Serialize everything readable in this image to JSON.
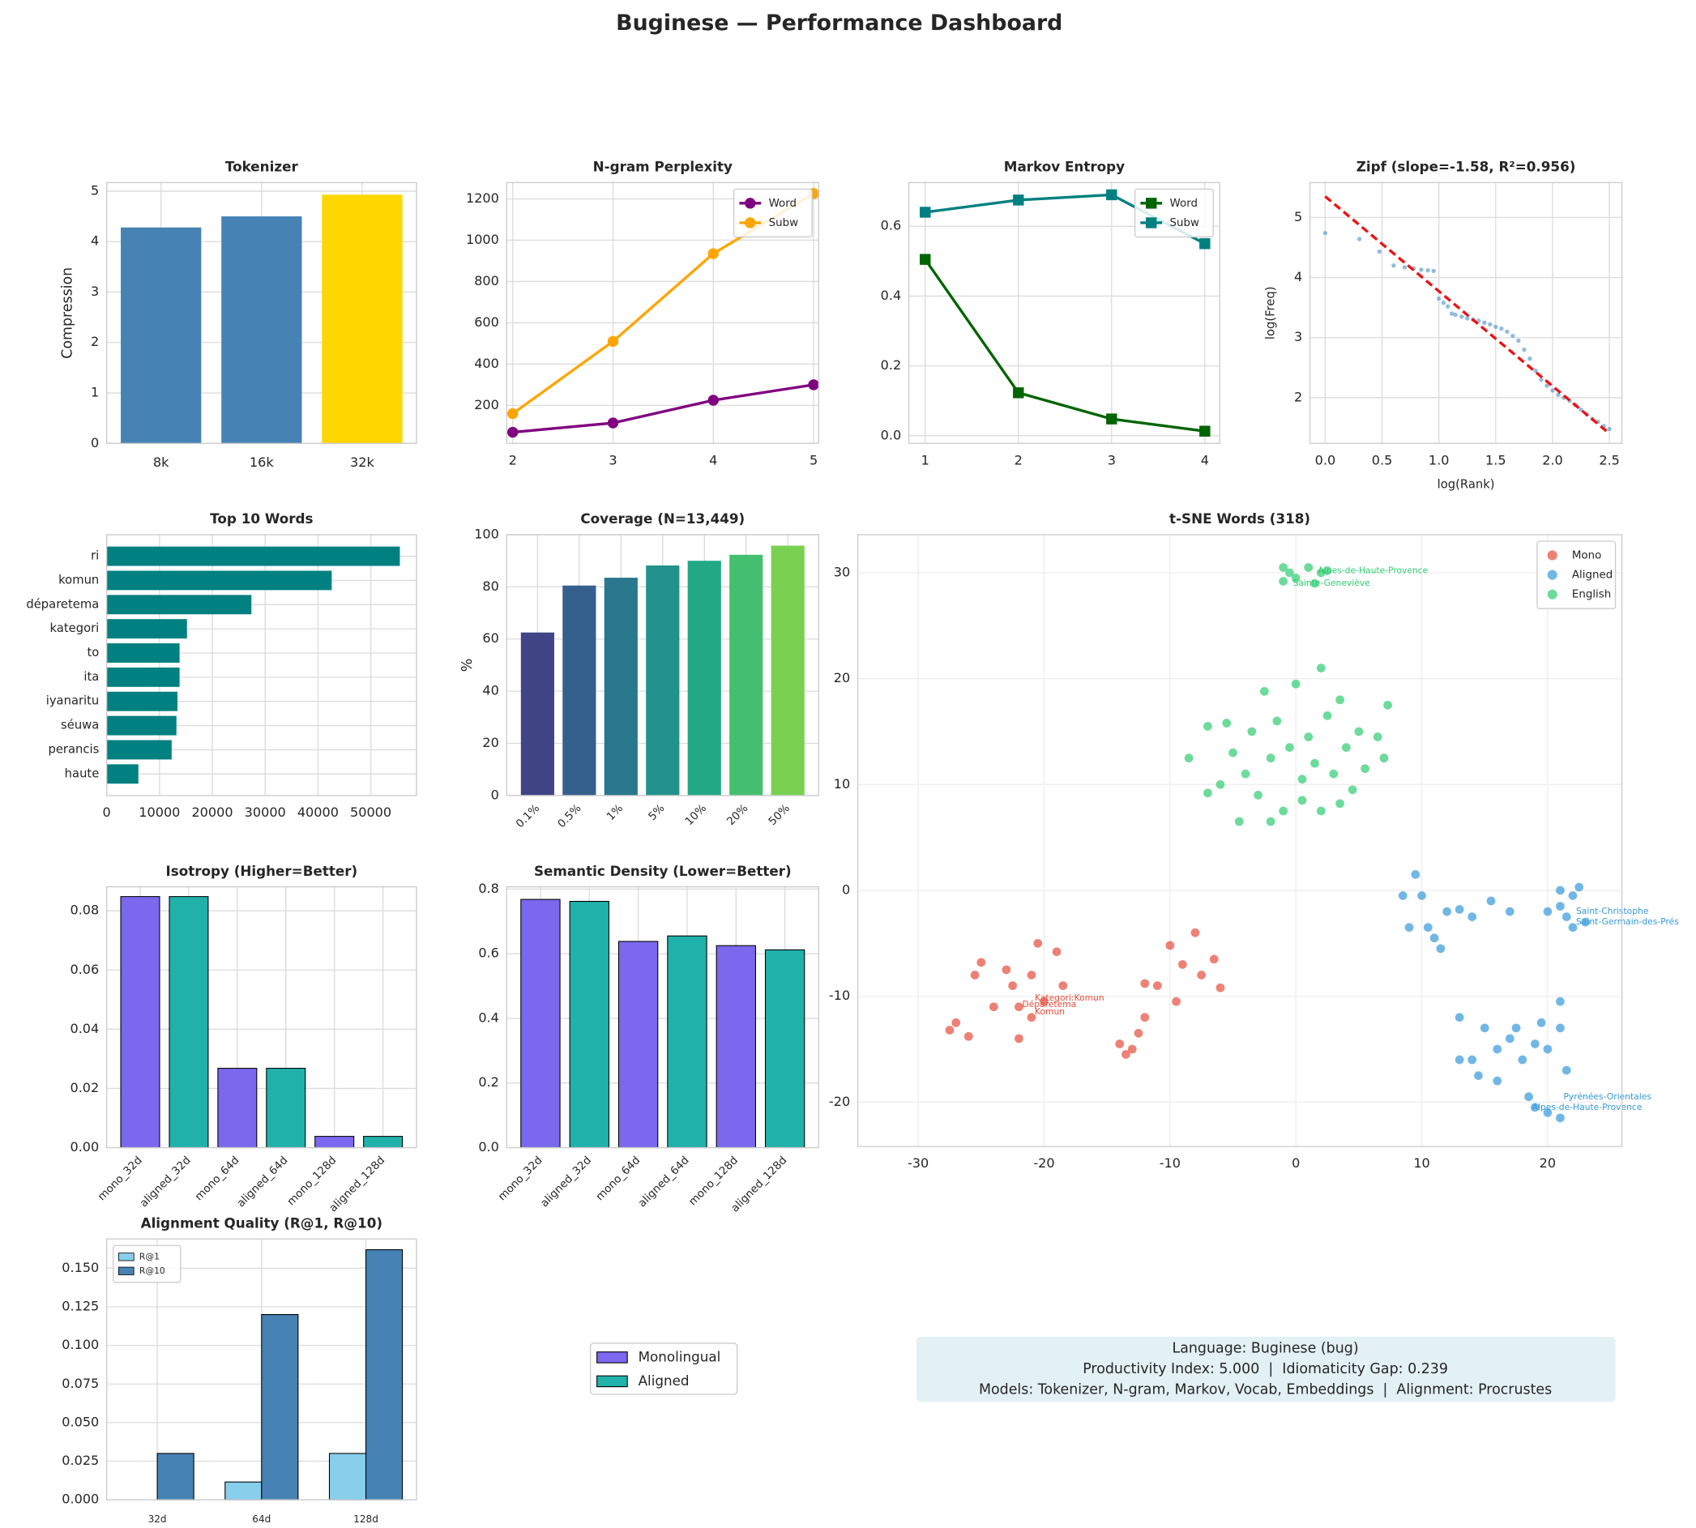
{
  "title": "Buginese — Performance Dashboard",
  "chart_data": [
    {
      "type": "bar",
      "title": "Tokenizer",
      "ylabel": "Compression",
      "categories": [
        "8k",
        "16k",
        "32k"
      ],
      "values": [
        4.28,
        4.5,
        4.93
      ],
      "colors": [
        "#4682b4",
        "#4682b4",
        "#ffd700"
      ],
      "ylim": [
        0,
        5.17
      ],
      "yticks": [
        0,
        1,
        2,
        3,
        4,
        5
      ],
      "grid": true
    },
    {
      "type": "line",
      "title": "N-gram Perplexity",
      "xlim": [
        1.94,
        5.05
      ],
      "xticks": [
        2,
        3,
        4,
        5
      ],
      "ylim": [
        16,
        1279
      ],
      "yticks": [
        200,
        400,
        600,
        800,
        1000,
        1200
      ],
      "grid": true,
      "legend": "upper right",
      "series": [
        {
          "name": "Word",
          "color": "#800080",
          "marker": "o",
          "x": [
            2,
            3,
            4,
            5
          ],
          "values": [
            70,
            115,
            225,
            300
          ]
        },
        {
          "name": "Subw",
          "color": "#ffa500",
          "marker": "o",
          "x": [
            2,
            3,
            4,
            5
          ],
          "values": [
            160,
            510,
            935,
            1226
          ]
        }
      ]
    },
    {
      "type": "line",
      "title": "Markov Entropy",
      "xlim": [
        0.825,
        4.16
      ],
      "xticks": [
        1,
        2,
        3,
        4
      ],
      "ylim": [
        -0.022,
        0.725
      ],
      "yticks": [
        {
          "value": 0,
          "label": "0.0"
        },
        0.2,
        0.4,
        0.6
      ],
      "grid": true,
      "legend": "upper right",
      "series": [
        {
          "name": "Word",
          "color": "#006400",
          "marker": "s",
          "x": [
            1,
            2,
            3,
            4
          ],
          "values": [
            0.505,
            0.123,
            0.048,
            0.013
          ]
        },
        {
          "name": "Subw",
          "color": "#008080",
          "marker": "s",
          "x": [
            1,
            2,
            3,
            4
          ],
          "values": [
            0.64,
            0.675,
            0.69,
            0.55
          ]
        }
      ]
    },
    {
      "type": "scatter",
      "title": "Zipf (slope=-1.58, R²=0.956)",
      "xlabel": "log(Rank)",
      "ylabel": "log(Freq)",
      "xlim": [
        -0.134,
        2.61
      ],
      "xticks": [
        {
          "value": 0,
          "label": "0.0"
        },
        0.5,
        {
          "value": 1,
          "label": "1.0"
        },
        1.5,
        {
          "value": 2,
          "label": "2.0"
        },
        2.5
      ],
      "ylim": [
        1.24,
        5.58
      ],
      "yticks": [
        2,
        3,
        4,
        5
      ],
      "grid": true,
      "color": "#4a90c8",
      "x": [
        0,
        0.301,
        0.477,
        0.602,
        0.699,
        0.778,
        0.845,
        0.903,
        0.954,
        1.0,
        1.041,
        1.079,
        1.114,
        1.146,
        1.2,
        1.25,
        1.3,
        1.35,
        1.4,
        1.45,
        1.5,
        1.55,
        1.6,
        1.65,
        1.7,
        1.75,
        1.8,
        1.85,
        1.9,
        1.95,
        2.0,
        2.05,
        2.1,
        2.15,
        2.2,
        2.25,
        2.3,
        2.35,
        2.4,
        2.45,
        2.5
      ],
      "y": [
        4.74,
        4.64,
        4.43,
        4.2,
        4.17,
        4.15,
        4.13,
        4.12,
        4.11,
        3.65,
        3.58,
        3.52,
        3.4,
        3.38,
        3.35,
        3.32,
        3.3,
        3.28,
        3.25,
        3.22,
        3.18,
        3.15,
        3.1,
        3.03,
        2.95,
        2.8,
        2.65,
        2.45,
        2.3,
        2.2,
        2.12,
        2.05,
        2.0,
        1.95,
        1.88,
        1.8,
        1.72,
        1.65,
        1.6,
        1.53,
        1.48
      ],
      "fit": {
        "color": "#ee1111",
        "x": [
          0,
          2.49
        ],
        "y": [
          5.35,
          1.42
        ]
      }
    },
    {
      "type": "barh",
      "title": "Top 10 Words",
      "categories": [
        "ri",
        "komun",
        "déparetema",
        "kategori",
        "to",
        "ita",
        "iyanaritu",
        "séuwa",
        "perancis",
        "haute"
      ],
      "values": [
        55500,
        42600,
        27400,
        15200,
        13800,
        13800,
        13400,
        13200,
        12300,
        6000
      ],
      "color": "#008080",
      "xlim": [
        0,
        58650
      ],
      "xticks": [
        0,
        10000,
        20000,
        30000,
        40000,
        50000
      ],
      "grid": true
    },
    {
      "type": "bar",
      "title": "Coverage (N=13,449)",
      "ylabel": "%",
      "categories": [
        "0.1%",
        "0.5%",
        "1%",
        "5%",
        "10%",
        "20%",
        "50%"
      ],
      "values": [
        62.5,
        80.5,
        83.5,
        88.2,
        90,
        92.3,
        95.8
      ],
      "colors": [
        "#414487",
        "#355f8d",
        "#2a788e",
        "#21918c",
        "#22a884",
        "#44bf70",
        "#7ad151"
      ],
      "ylim": [
        0,
        100
      ],
      "yticks": [
        0,
        20,
        40,
        60,
        80,
        100
      ],
      "grid": true,
      "xtick_rotation": 45
    },
    {
      "type": "scatter",
      "title": "t-SNE Words (318)",
      "xlim": [
        -34.8,
        25.9
      ],
      "xticks": [
        -30,
        -20,
        -10,
        0,
        10,
        20
      ],
      "ylim": [
        -24.2,
        33.6
      ],
      "yticks": [
        -20,
        -10,
        0,
        10,
        20,
        30
      ],
      "grid": true,
      "legend": "upper right",
      "series": [
        {
          "name": "Mono",
          "color": "#e74c3c",
          "x": [
            -27.5,
            -27,
            -26,
            -25,
            -25.5,
            -24,
            -23,
            -22.5,
            -22,
            -21,
            -21,
            -20,
            -19,
            -18.5,
            -20.5,
            -22,
            -14,
            -13,
            -12.5,
            -12,
            -11,
            -10,
            -9,
            -8,
            -7.5,
            -6.5,
            -6,
            -9.5,
            -13.5,
            -12
          ],
          "y": [
            -13.2,
            -12.5,
            -13.8,
            -6.8,
            -8,
            -11,
            -7.5,
            -9,
            -11,
            -12,
            -8,
            -10.5,
            -5.8,
            -9,
            -5,
            -14,
            -14.5,
            -15,
            -13.5,
            -12,
            -9,
            -5.2,
            -7,
            -4,
            -8,
            -6.5,
            -9.2,
            -10.5,
            -15.5,
            -8.8
          ]
        },
        {
          "name": "Aligned",
          "color": "#3498db",
          "x": [
            9.5,
            8.5,
            10,
            9,
            10.5,
            11,
            11.5,
            12,
            13,
            14,
            15.5,
            17,
            20,
            21,
            22,
            22.5,
            21.5,
            23,
            22,
            21,
            13,
            14,
            14.5,
            15,
            16,
            17,
            17.5,
            18,
            19,
            19.5,
            20,
            21,
            21.5,
            21,
            20,
            21,
            19,
            18.5,
            16,
            13
          ],
          "y": [
            1.5,
            -0.5,
            -0.5,
            -3.5,
            -3.5,
            -4.5,
            -5.5,
            -2,
            -1.8,
            -2.5,
            -1,
            -2,
            -2,
            0,
            -0.5,
            0.3,
            -2.5,
            -3,
            -3.5,
            -1.5,
            -12,
            -16,
            -17.5,
            -13,
            -15,
            -14,
            -13,
            -16,
            -14.5,
            -12.5,
            -15,
            -13,
            -17,
            -10.5,
            -21,
            -21.5,
            -20.5,
            -19.5,
            -18,
            -16
          ]
        },
        {
          "name": "English",
          "color": "#2ecc71",
          "x": [
            -0.5,
            0,
            1,
            2,
            1.5,
            -1,
            2.5,
            -1,
            -8.5,
            -7,
            -6,
            -5,
            -4.5,
            -4,
            -3.5,
            -3,
            -2.5,
            -2,
            -1.5,
            -1,
            -0.5,
            0,
            0.5,
            1,
            1.5,
            2,
            2.5,
            3,
            3.5,
            4,
            4.5,
            5,
            5.5,
            6.5,
            7,
            7.3,
            2,
            -5.5,
            -2,
            0.5,
            -7,
            3.5
          ],
          "y": [
            30,
            29.5,
            30.5,
            30,
            29,
            29.2,
            30.2,
            30.5,
            12.5,
            15.5,
            10,
            13,
            6.5,
            11,
            15,
            9,
            18.8,
            12.5,
            16,
            7.5,
            13.5,
            19.5,
            10.5,
            14.5,
            12,
            7.5,
            16.5,
            11,
            18,
            13.5,
            9.5,
            15,
            11.5,
            14.5,
            12.5,
            17.5,
            21,
            15.8,
            6.5,
            8.5,
            9.2,
            8.2
          ]
        }
      ],
      "annotations": [
        {
          "text": "Kategori:Komun",
          "x": -21,
          "y": -10.2,
          "color": "#e74c3c"
        },
        {
          "text": "Déparetema",
          "x": -22,
          "y": -10.8,
          "color": "#e74c3c"
        },
        {
          "text": "Komun",
          "x": -21,
          "y": -11.5,
          "color": "#e74c3c"
        },
        {
          "text": "Saint-Christophe",
          "x": 22,
          "y": -2,
          "color": "#3498db"
        },
        {
          "text": "Saint-Germain-des-Prés",
          "x": 22,
          "y": -3,
          "color": "#3498db"
        },
        {
          "text": "Pyrénées-Orientales",
          "x": 21,
          "y": -19.5,
          "color": "#3498db"
        },
        {
          "text": "Alpes-de-Haute-Provence",
          "x": 18.5,
          "y": -20.5,
          "color": "#3498db"
        },
        {
          "text": "Alpes-de-Haute-Provence",
          "x": 1.5,
          "y": 30.2,
          "color": "#2ecc71"
        },
        {
          "text": "Sainte-Geneviève",
          "x": -0.5,
          "y": 29,
          "color": "#2ecc71"
        }
      ]
    },
    {
      "type": "bar",
      "title": "Isotropy (Higher=Better)",
      "categories": [
        "mono_32d",
        "aligned_32d",
        "mono_64d",
        "aligned_64d",
        "mono_128d",
        "aligned_128d"
      ],
      "values": [
        0.0848,
        0.0848,
        0.0268,
        0.0268,
        0.0038,
        0.0038
      ],
      "colors": [
        "#7b68ee",
        "#20b2aa",
        "#7b68ee",
        "#20b2aa",
        "#7b68ee",
        "#20b2aa"
      ],
      "edgecolor": "#000000",
      "ylim": [
        0,
        0.0881
      ],
      "yticks": [
        {
          "value": 0,
          "label": "0.00"
        },
        0.02,
        0.04,
        0.06,
        0.08
      ],
      "grid": true,
      "xtick_rotation": 45
    },
    {
      "type": "bar",
      "title": "Semantic Density (Lower=Better)",
      "categories": [
        "mono_32d",
        "aligned_32d",
        "mono_64d",
        "aligned_64d",
        "mono_128d",
        "aligned_128d"
      ],
      "values": [
        0.768,
        0.762,
        0.638,
        0.655,
        0.625,
        0.612
      ],
      "colors": [
        "#7b68ee",
        "#20b2aa",
        "#7b68ee",
        "#20b2aa",
        "#7b68ee",
        "#20b2aa"
      ],
      "edgecolor": "#000000",
      "ylim": [
        0,
        0.807
      ],
      "yticks": [
        {
          "value": 0,
          "label": "0.0"
        },
        0.2,
        0.4,
        0.6,
        0.8
      ],
      "grid": true,
      "xtick_rotation": 45
    },
    {
      "type": "grouped_bar",
      "title": "Alignment Quality (R@1, R@10)",
      "categories": [
        "32d",
        "64d",
        "128d"
      ],
      "edgecolor": "#000000",
      "ylim": [
        0,
        0.169
      ],
      "yticks": [
        {
          "value": 0,
          "label": "0.000"
        },
        0.025,
        {
          "value": 0.05,
          "label": "0.050"
        },
        0.075,
        {
          "value": 0.1,
          "label": "0.100"
        },
        0.125,
        {
          "value": 0.15,
          "label": "0.150"
        }
      ],
      "grid": true,
      "legend": "upper left",
      "series": [
        {
          "name": "R@1",
          "color": "#87ceeb",
          "values": [
            0,
            0.0115,
            0.03
          ]
        },
        {
          "name": "R@10",
          "color": "#4682b4",
          "values": [
            0.03,
            0.12,
            0.162
          ]
        }
      ]
    }
  ],
  "figure_legend": {
    "labels": [
      "Monolingual",
      "Aligned"
    ],
    "colors": [
      "#7b68ee",
      "#20b2aa"
    ]
  },
  "summary": [
    "Language: Buginese (bug)",
    "Productivity Index: 5.000  |  Idiomaticity Gap: 0.239",
    "Models: Tokenizer, N-gram, Markov, Vocab, Embeddings  |  Alignment: Procrustes"
  ]
}
